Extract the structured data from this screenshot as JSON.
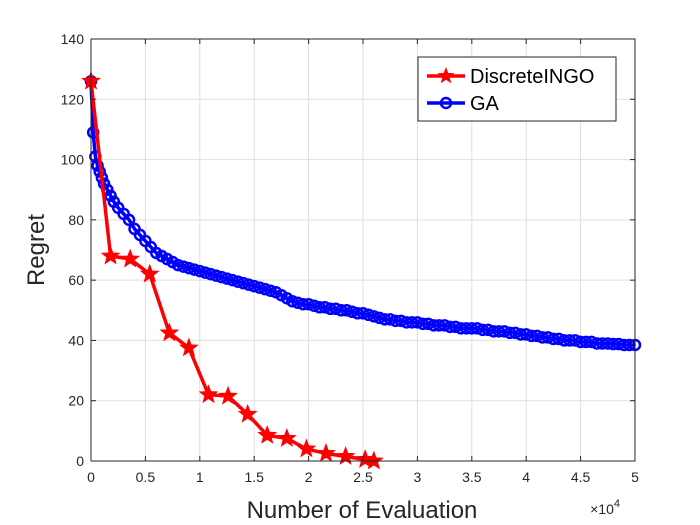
{
  "chart_data": {
    "type": "line",
    "title": "",
    "xlabel": "Number of Evaluation",
    "ylabel": "Regret",
    "xlim": [
      0,
      50000
    ],
    "ylim": [
      0,
      140
    ],
    "grid": true,
    "legend_position": "top-right",
    "x_exponent_base": "×10",
    "x_exponent_power": "4",
    "x_ticks": [
      0,
      5000,
      10000,
      15000,
      20000,
      25000,
      30000,
      35000,
      40000,
      45000,
      50000
    ],
    "x_tick_labels": [
      "0",
      "0.5",
      "1",
      "1.5",
      "2",
      "2.5",
      "3",
      "3.5",
      "4",
      "4.5",
      "5"
    ],
    "y_ticks": [
      0,
      20,
      40,
      60,
      80,
      100,
      120,
      140
    ],
    "y_tick_labels": [
      "0",
      "20",
      "40",
      "60",
      "80",
      "100",
      "120",
      "140"
    ],
    "series": [
      {
        "name": "DiscreteINGO",
        "color": "#ff0000",
        "marker": "star",
        "x": [
          0,
          1800,
          3600,
          5400,
          7200,
          9000,
          10800,
          12600,
          14400,
          16200,
          18000,
          19800,
          21600,
          23400,
          25200,
          26000
        ],
        "y": [
          126,
          68,
          67,
          62,
          42.5,
          37.5,
          22,
          21.5,
          15.5,
          8.5,
          7.5,
          4,
          2.5,
          1.5,
          0.5,
          0
        ]
      },
      {
        "name": "GA",
        "color": "#0000ff",
        "marker": "circle",
        "x": [
          0,
          200,
          400,
          600,
          800,
          1000,
          1200,
          1500,
          1800,
          2100,
          2500,
          3000,
          3500,
          4000,
          4500,
          5000,
          5500,
          6000,
          6500,
          7000,
          7500,
          8000,
          8500,
          9000,
          9500,
          10000,
          10500,
          11000,
          11500,
          12000,
          12500,
          13000,
          13500,
          14000,
          14500,
          15000,
          15500,
          16000,
          16500,
          17000,
          17500,
          18000,
          18500,
          19000,
          19500,
          20000,
          20500,
          21000,
          21500,
          22000,
          22500,
          23000,
          23500,
          24000,
          24500,
          25000,
          25500,
          26000,
          26500,
          27000,
          27500,
          28000,
          28500,
          29000,
          29500,
          30000,
          30500,
          31000,
          31500,
          32000,
          32500,
          33000,
          33500,
          34000,
          34500,
          35000,
          35500,
          36000,
          36500,
          37000,
          37500,
          38000,
          38500,
          39000,
          39500,
          40000,
          40500,
          41000,
          41500,
          42000,
          42500,
          43000,
          43500,
          44000,
          44500,
          45000,
          45500,
          46000,
          46500,
          47000,
          47500,
          48000,
          48500,
          49000,
          49500,
          50000
        ],
        "y": [
          126,
          109,
          101,
          98,
          96,
          94,
          92,
          90,
          88,
          86,
          84,
          82,
          80,
          77,
          75,
          73,
          71,
          69,
          68,
          67,
          66,
          65,
          64.5,
          64,
          63.5,
          63,
          62.5,
          62,
          61.5,
          61,
          60.5,
          60,
          59.5,
          59,
          58.5,
          58,
          57.5,
          57,
          56.5,
          56,
          55,
          54,
          53,
          52.5,
          52,
          52,
          51.5,
          51,
          51,
          50.5,
          50.5,
          50,
          50,
          49.5,
          49,
          49,
          48.5,
          48,
          47.5,
          47,
          47,
          46.5,
          46.5,
          46,
          46,
          46,
          45.5,
          45.5,
          45,
          45,
          45,
          44.5,
          44.5,
          44,
          44,
          44,
          44,
          43.5,
          43.5,
          43,
          43,
          43,
          42.5,
          42.5,
          42,
          42,
          41.5,
          41.5,
          41,
          41,
          40.5,
          40.5,
          40,
          40,
          40,
          39.5,
          39.5,
          39.5,
          39,
          39,
          39,
          38.8,
          38.8,
          38.5,
          38.5,
          38.5
        ]
      }
    ]
  }
}
